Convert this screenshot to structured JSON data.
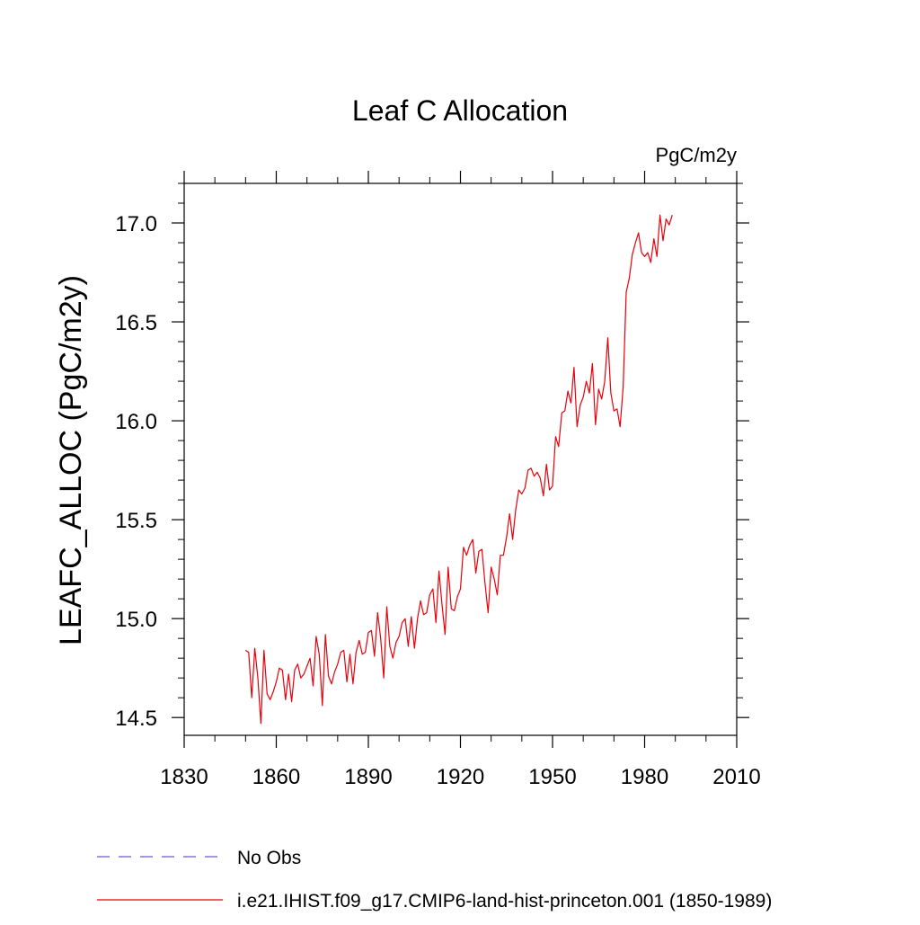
{
  "chart_data": {
    "type": "line",
    "title": "Leaf C Allocation",
    "units": "PgC/m2y",
    "ylabel": "LEAFC_ALLOC  (PgC/m2y)",
    "xlabel": "",
    "xlim": [
      1830,
      2010
    ],
    "ylim": [
      14.41,
      17.2
    ],
    "x_ticks": [
      1830,
      1860,
      1890,
      1920,
      1950,
      1980,
      2010
    ],
    "x_tick_labels": [
      "1830",
      "1860",
      "1890",
      "1920",
      "1950",
      "1980",
      "2010"
    ],
    "y_ticks": [
      14.5,
      15.0,
      15.5,
      16.0,
      16.5,
      17.0
    ],
    "y_tick_labels": [
      "14.5",
      "15.0",
      "15.5",
      "16.0",
      "16.5",
      "17.0"
    ],
    "grid": false,
    "legend_position": "bottom-left",
    "series": [
      {
        "name": "No Obs",
        "color": "#6a5acd",
        "dash": "dashed",
        "x": [],
        "y": []
      },
      {
        "name": "i.e21.IHIST.f09_g17.CMIP6-land-hist-princeton.001 (1850-1989)",
        "color": "#e8000b",
        "dash": "solid",
        "x": [
          1850,
          1851,
          1852,
          1853,
          1854,
          1855,
          1856,
          1857,
          1858,
          1859,
          1860,
          1861,
          1862,
          1863,
          1864,
          1865,
          1866,
          1867,
          1868,
          1869,
          1870,
          1871,
          1872,
          1873,
          1874,
          1875,
          1876,
          1877,
          1878,
          1879,
          1880,
          1881,
          1882,
          1883,
          1884,
          1885,
          1886,
          1887,
          1888,
          1889,
          1890,
          1891,
          1892,
          1893,
          1894,
          1895,
          1896,
          1897,
          1898,
          1899,
          1900,
          1901,
          1902,
          1903,
          1904,
          1905,
          1906,
          1907,
          1908,
          1909,
          1910,
          1911,
          1912,
          1913,
          1914,
          1915,
          1916,
          1917,
          1918,
          1919,
          1920,
          1921,
          1922,
          1923,
          1924,
          1925,
          1926,
          1927,
          1928,
          1929,
          1930,
          1931,
          1932,
          1933,
          1934,
          1935,
          1936,
          1937,
          1938,
          1939,
          1940,
          1941,
          1942,
          1943,
          1944,
          1945,
          1946,
          1947,
          1948,
          1949,
          1950,
          1951,
          1952,
          1953,
          1954,
          1955,
          1956,
          1957,
          1958,
          1959,
          1960,
          1961,
          1962,
          1963,
          1964,
          1965,
          1966,
          1967,
          1968,
          1969,
          1970,
          1971,
          1972,
          1973,
          1974,
          1975,
          1976,
          1977,
          1978,
          1979,
          1980,
          1981,
          1982,
          1983,
          1984,
          1985,
          1986,
          1987,
          1988,
          1989
        ],
        "y": [
          14.84,
          14.83,
          14.6,
          14.85,
          14.7,
          14.47,
          14.84,
          14.62,
          14.59,
          14.63,
          14.68,
          14.75,
          14.74,
          14.59,
          14.72,
          14.58,
          14.74,
          14.77,
          14.7,
          14.72,
          14.76,
          14.8,
          14.66,
          14.91,
          14.82,
          14.56,
          14.92,
          14.71,
          14.67,
          14.73,
          14.77,
          14.83,
          14.84,
          14.68,
          14.82,
          14.67,
          14.83,
          14.89,
          14.82,
          14.83,
          14.93,
          14.94,
          14.81,
          15.03,
          14.9,
          14.7,
          15.06,
          14.86,
          14.8,
          14.88,
          14.91,
          14.98,
          15.0,
          14.86,
          15.01,
          14.85,
          15.0,
          15.09,
          15.02,
          15.03,
          15.12,
          15.15,
          14.98,
          15.24,
          15.07,
          14.92,
          15.26,
          15.05,
          15.04,
          15.11,
          15.15,
          15.36,
          15.32,
          15.37,
          15.4,
          15.23,
          15.34,
          15.35,
          15.18,
          15.03,
          15.26,
          15.2,
          15.12,
          15.32,
          15.32,
          15.41,
          15.53,
          15.4,
          15.55,
          15.65,
          15.63,
          15.66,
          15.75,
          15.76,
          15.72,
          15.74,
          15.71,
          15.62,
          15.78,
          15.65,
          15.67,
          15.92,
          15.87,
          16.04,
          16.05,
          16.15,
          16.09,
          16.27,
          15.97,
          16.08,
          16.12,
          16.2,
          16.14,
          16.29,
          15.98,
          16.16,
          16.11,
          16.2,
          16.42,
          16.14,
          16.05,
          16.06,
          15.97,
          16.17,
          16.65,
          16.72,
          16.84,
          16.9,
          16.95,
          16.85,
          16.83,
          16.85,
          16.8,
          16.92,
          16.83,
          17.04,
          16.91,
          17.02,
          16.99,
          17.04
        ]
      }
    ]
  }
}
